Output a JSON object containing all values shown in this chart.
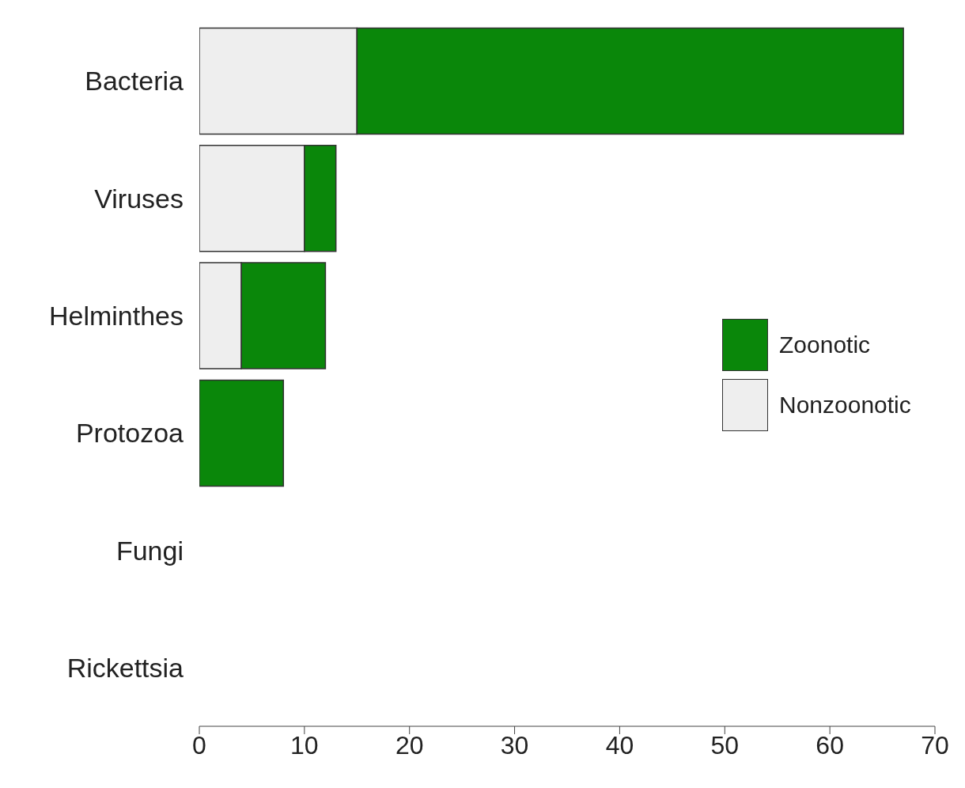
{
  "chart_data": {
    "type": "bar",
    "orientation": "horizontal",
    "stacked": true,
    "categories": [
      "Bacteria",
      "Viruses",
      "Helminthes",
      "Protozoa",
      "Fungi",
      "Rickettsia"
    ],
    "series": [
      {
        "name": "Nonzoonotic",
        "color": "#eeeeee",
        "values": [
          15,
          10,
          4,
          0,
          0,
          0
        ]
      },
      {
        "name": "Zoonotic",
        "color": "#0a870a",
        "values": [
          52,
          3,
          8,
          8,
          0,
          0
        ]
      }
    ],
    "xlim": [
      0,
      70
    ],
    "xticks": [
      0,
      10,
      20,
      30,
      40,
      50,
      60,
      70
    ],
    "grid": false,
    "legend": "right"
  }
}
